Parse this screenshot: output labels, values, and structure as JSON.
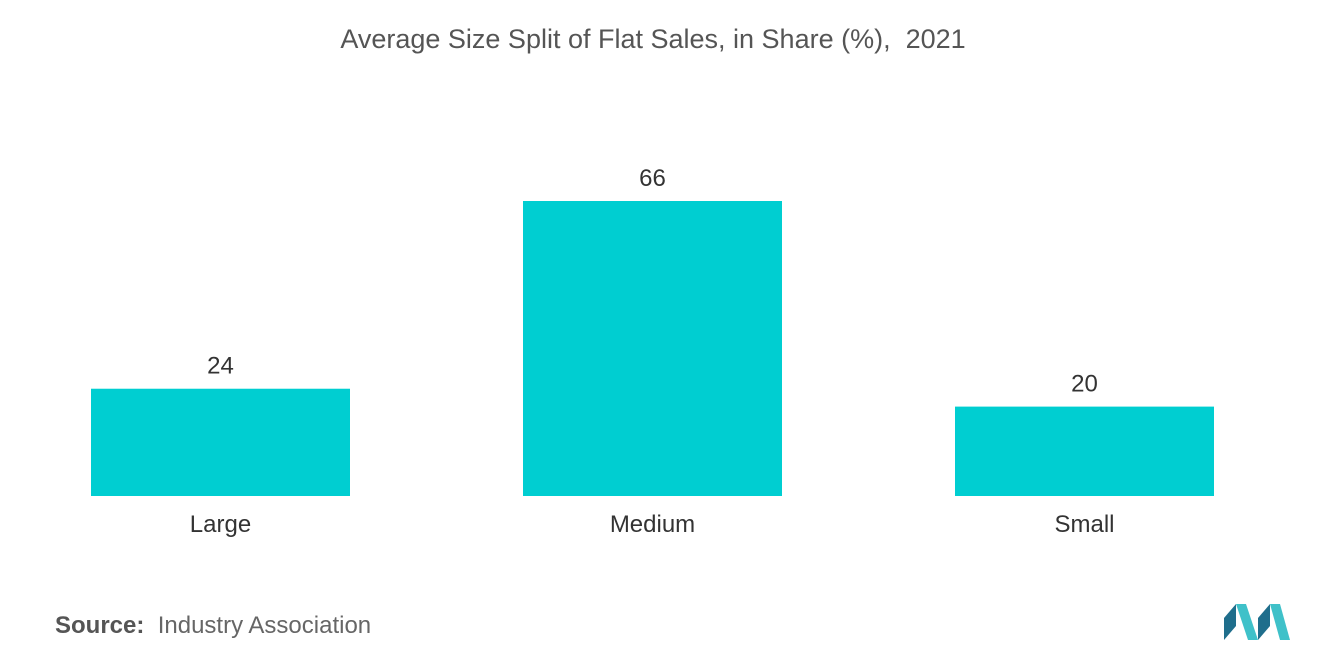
{
  "title": "Average Size Split of Flat Sales, in Share (%),  2021",
  "source": {
    "label": "Source:",
    "text": "Industry Association"
  },
  "colors": {
    "bar": "#00CED1",
    "logo_dark": "#1F6E8C",
    "logo_light": "#3FC1C9"
  },
  "chart_data": {
    "type": "bar",
    "title": "Average Size Split of Flat Sales, in Share (%),  2021",
    "categories": [
      "Large",
      "Medium",
      "Small"
    ],
    "values": [
      24,
      66,
      20
    ],
    "xlabel": "",
    "ylabel": "",
    "grid": false,
    "data_labels": true
  }
}
